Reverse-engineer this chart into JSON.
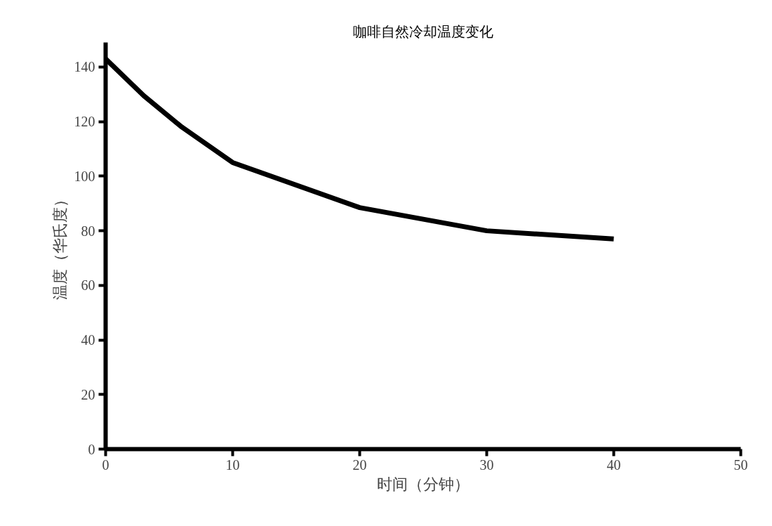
{
  "chart_data": {
    "type": "line",
    "title": "咖啡自然冷却温度变化",
    "xlabel": "时间（分钟）",
    "ylabel": "温度（华氏度）",
    "x": [
      0,
      3,
      6,
      10,
      20,
      30,
      40
    ],
    "series": [
      {
        "color": "#000000",
        "values": [
          143,
          129.5,
          118,
          105,
          88.5,
          80,
          77
        ]
      }
    ],
    "xlim": [
      0,
      50
    ],
    "ylim": [
      0,
      149
    ],
    "xticks": [
      0,
      10,
      20,
      30,
      40,
      50
    ],
    "yticks": [
      0,
      20,
      40,
      60,
      80,
      100,
      120,
      140
    ],
    "grid": false,
    "marker": "none",
    "line_style": "solid"
  }
}
